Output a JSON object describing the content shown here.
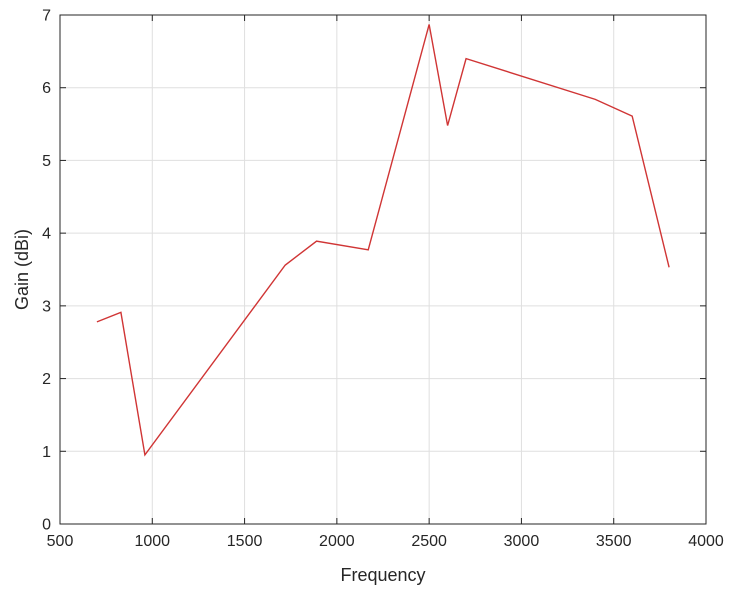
{
  "chart_data": {
    "type": "line",
    "title": "",
    "xlabel": "Frequency",
    "ylabel": "Gain (dBi)",
    "xlim": [
      500,
      4000
    ],
    "ylim": [
      0,
      7
    ],
    "xticks": [
      500,
      1000,
      1500,
      2000,
      2500,
      3000,
      3500,
      4000
    ],
    "yticks": [
      0,
      1,
      2,
      3,
      4,
      5,
      6,
      7
    ],
    "xtick_labels": [
      "500",
      "1000",
      "1500",
      "2000",
      "2500",
      "3000",
      "3500",
      "4000"
    ],
    "ytick_labels": [
      "0",
      "1",
      "2",
      "3",
      "4",
      "5",
      "6",
      "7"
    ],
    "grid": true,
    "legend": "none",
    "series": [
      {
        "color": "#d03535",
        "x": [
          700,
          830,
          960,
          1720,
          1890,
          2170,
          2500,
          2600,
          2700,
          3400,
          3600,
          3800
        ],
        "y": [
          2.78,
          2.91,
          0.95,
          3.56,
          3.89,
          3.77,
          6.87,
          5.48,
          6.4,
          5.84,
          5.61,
          3.53
        ]
      }
    ]
  }
}
